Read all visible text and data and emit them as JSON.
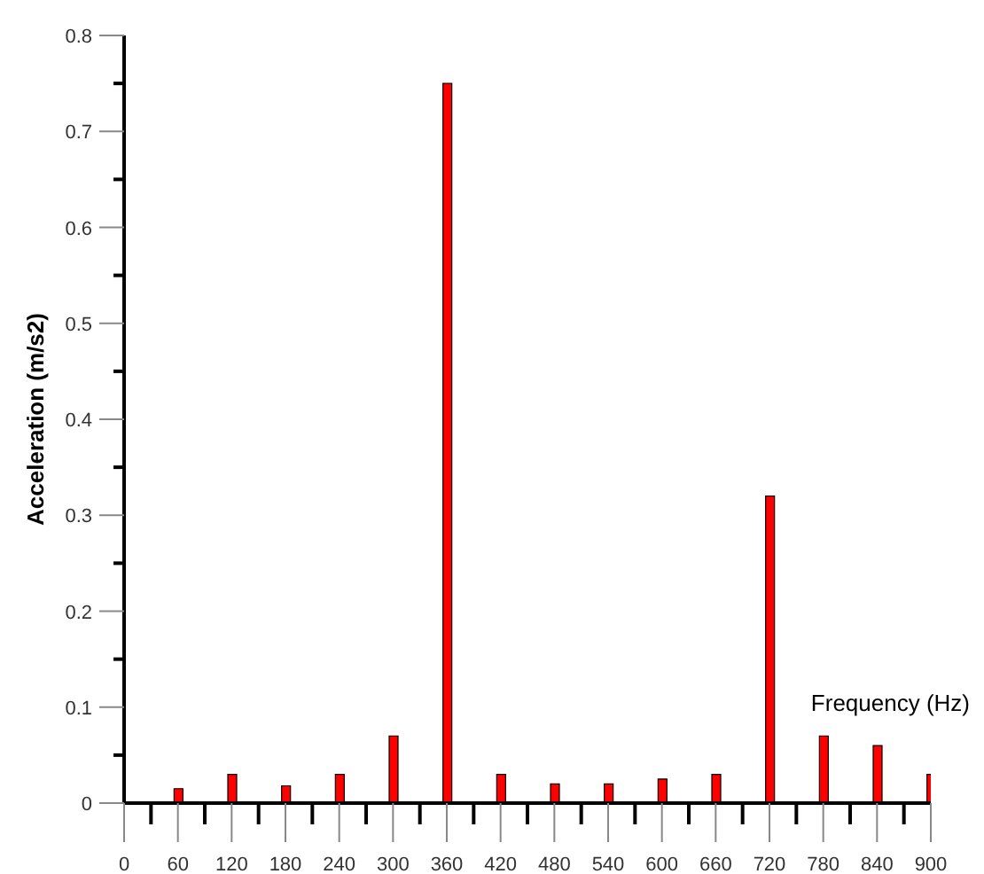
{
  "chart_data": {
    "type": "bar",
    "xlabel": "Frequency (Hz)",
    "ylabel": "Acceleration (m/s2)",
    "x": [
      60,
      120,
      180,
      240,
      300,
      360,
      420,
      480,
      540,
      600,
      660,
      720,
      780,
      840,
      900
    ],
    "values": [
      0.015,
      0.03,
      0.018,
      0.03,
      0.07,
      0.75,
      0.03,
      0.02,
      0.02,
      0.025,
      0.03,
      0.32,
      0.07,
      0.06,
      0.03
    ],
    "color": "#ff0000",
    "xlim": [
      0,
      900
    ],
    "xticks": [
      0,
      {
        "value": 30,
        "label": null
      },
      60,
      {
        "value": 90,
        "label": null
      },
      120,
      {
        "value": 150,
        "label": null
      },
      180,
      {
        "value": 210,
        "label": null
      },
      240,
      {
        "value": 270,
        "label": null
      },
      300,
      {
        "value": 330,
        "label": null
      },
      360,
      {
        "value": 390,
        "label": null
      },
      420,
      {
        "value": 450,
        "label": null
      },
      480,
      {
        "value": 510,
        "label": null
      },
      540,
      {
        "value": 570,
        "label": null
      },
      600,
      {
        "value": 630,
        "label": null
      },
      660,
      {
        "value": 690,
        "label": null
      },
      720,
      {
        "value": 750,
        "label": null
      },
      780,
      {
        "value": 810,
        "label": null
      },
      840,
      {
        "value": 870,
        "label": null
      },
      900
    ],
    "ylim": [
      0,
      0.8
    ],
    "yticks": [
      0,
      {
        "value": 0.05,
        "label": null
      },
      0.1,
      {
        "value": 0.15,
        "label": null
      },
      0.2,
      {
        "value": 0.25,
        "label": null
      },
      0.3,
      {
        "value": 0.35,
        "label": null
      },
      0.4,
      {
        "value": 0.45,
        "label": null
      },
      0.5,
      {
        "value": 0.55,
        "label": null
      },
      0.6,
      {
        "value": 0.65,
        "label": null
      },
      0.7,
      {
        "value": 0.75,
        "label": null
      },
      0.8
    ],
    "grid": false,
    "legend": false
  }
}
